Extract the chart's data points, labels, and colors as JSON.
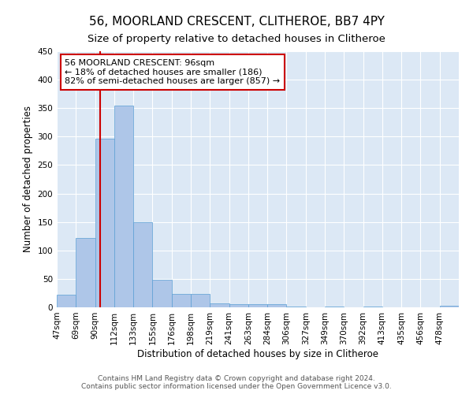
{
  "title": "56, MOORLAND CRESCENT, CLITHEROE, BB7 4PY",
  "subtitle": "Size of property relative to detached houses in Clitheroe",
  "xlabel": "Distribution of detached houses by size in Clitheroe",
  "ylabel": "Number of detached properties",
  "bin_labels": [
    "47sqm",
    "69sqm",
    "90sqm",
    "112sqm",
    "133sqm",
    "155sqm",
    "176sqm",
    "198sqm",
    "219sqm",
    "241sqm",
    "263sqm",
    "284sqm",
    "306sqm",
    "327sqm",
    "349sqm",
    "370sqm",
    "392sqm",
    "413sqm",
    "435sqm",
    "456sqm",
    "478sqm"
  ],
  "bar_heights": [
    22,
    122,
    297,
    354,
    150,
    48,
    23,
    23,
    7,
    5,
    5,
    5,
    1,
    0,
    2,
    0,
    2,
    0,
    0,
    0,
    3
  ],
  "bar_color": "#aec6e8",
  "bar_edge_color": "#5a9fd4",
  "background_color": "#dce8f5",
  "vline_color": "#cc0000",
  "annotation_text": "56 MOORLAND CRESCENT: 96sqm\n← 18% of detached houses are smaller (186)\n82% of semi-detached houses are larger (857) →",
  "annotation_box_color": "#ffffff",
  "annotation_box_edge_color": "#cc0000",
  "ylim": [
    0,
    450
  ],
  "yticks": [
    0,
    50,
    100,
    150,
    200,
    250,
    300,
    350,
    400,
    450
  ],
  "footer_text": "Contains HM Land Registry data © Crown copyright and database right 2024.\nContains public sector information licensed under the Open Government Licence v3.0.",
  "title_fontsize": 11,
  "subtitle_fontsize": 9.5,
  "axis_label_fontsize": 8.5,
  "tick_fontsize": 7.5,
  "annotation_fontsize": 8,
  "footer_fontsize": 6.5
}
